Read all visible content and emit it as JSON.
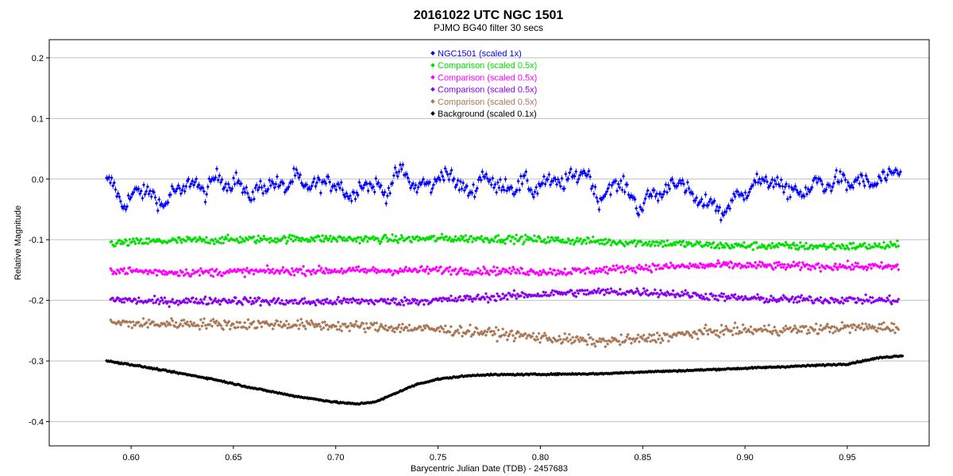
{
  "chart_data": {
    "type": "scatter",
    "title": "20161022 UTC   NGC 1501",
    "subtitle": "PJMO    BG40 filter    30 secs",
    "xlabel": "Barycentric Julian Date (TDB) - 2457683",
    "ylabel": "Relative Magnitude",
    "xlim": [
      0.56,
      0.99
    ],
    "ylim": [
      -0.44,
      0.23
    ],
    "x_ticks": [
      0.6,
      0.65,
      0.7,
      0.75,
      0.8,
      0.85,
      0.9,
      0.95
    ],
    "x_tick_labels": [
      "0.60",
      "0.65",
      "0.70",
      "0.75",
      "0.80",
      "0.85",
      "0.90",
      "0.95"
    ],
    "y_ticks": [
      0.2,
      0.1,
      0.0,
      -0.1,
      -0.2,
      -0.3,
      -0.4
    ],
    "y_tick_labels": [
      "0.2",
      "0.1",
      "0.0",
      "-0.1",
      "-0.2",
      "-0.3",
      "-0.4"
    ],
    "grid": "horizontal",
    "legend_position": "top-center",
    "series": [
      {
        "name": "NGC1501 (scaled 1x)",
        "color": "#0000ff",
        "error_bars": true,
        "x": [
          0.588,
          0.592,
          0.596,
          0.6,
          0.604,
          0.608,
          0.612,
          0.616,
          0.62,
          0.624,
          0.628,
          0.632,
          0.636,
          0.64,
          0.644,
          0.648,
          0.652,
          0.656,
          0.66,
          0.664,
          0.668,
          0.672,
          0.676,
          0.68,
          0.684,
          0.688,
          0.692,
          0.696,
          0.7,
          0.704,
          0.708,
          0.712,
          0.716,
          0.72,
          0.724,
          0.728,
          0.732,
          0.736,
          0.74,
          0.744,
          0.748,
          0.752,
          0.756,
          0.76,
          0.764,
          0.768,
          0.772,
          0.776,
          0.78,
          0.784,
          0.788,
          0.792,
          0.796,
          0.8,
          0.804,
          0.808,
          0.812,
          0.816,
          0.82,
          0.824,
          0.828,
          0.832,
          0.836,
          0.84,
          0.844,
          0.848,
          0.852,
          0.856,
          0.86,
          0.864,
          0.868,
          0.872,
          0.876,
          0.88,
          0.884,
          0.888,
          0.892,
          0.896,
          0.9,
          0.904,
          0.908,
          0.912,
          0.916,
          0.92,
          0.924,
          0.928,
          0.932,
          0.936,
          0.94,
          0.944,
          0.948,
          0.952,
          0.956,
          0.96,
          0.964,
          0.968,
          0.972,
          0.976
        ],
        "y": [
          -0.005,
          -0.015,
          -0.04,
          -0.035,
          -0.015,
          -0.02,
          -0.035,
          -0.04,
          -0.025,
          -0.02,
          -0.005,
          -0.01,
          -0.02,
          -0.005,
          0.005,
          -0.01,
          -0.005,
          -0.02,
          -0.03,
          -0.01,
          -0.005,
          -0.015,
          -0.01,
          0.005,
          -0.015,
          -0.005,
          -0.015,
          0.0,
          -0.01,
          -0.02,
          -0.025,
          -0.015,
          -0.005,
          -0.01,
          -0.03,
          0.005,
          0.01,
          0.0,
          -0.015,
          -0.01,
          -0.005,
          0.005,
          0.01,
          -0.01,
          -0.025,
          -0.01,
          0.005,
          -0.005,
          -0.01,
          -0.015,
          -0.01,
          -0.005,
          -0.02,
          -0.005,
          -0.01,
          0.0,
          -0.01,
          0.005,
          0.015,
          0.0,
          -0.03,
          -0.025,
          -0.01,
          -0.005,
          -0.03,
          -0.045,
          -0.035,
          -0.025,
          -0.02,
          -0.01,
          0.0,
          -0.02,
          -0.04,
          -0.035,
          -0.04,
          -0.055,
          -0.045,
          -0.03,
          -0.02,
          -0.01,
          0.0,
          -0.005,
          -0.01,
          -0.015,
          -0.02,
          -0.025,
          -0.015,
          -0.005,
          -0.01,
          -0.005,
          0.0,
          -0.01,
          -0.005,
          0.0,
          -0.015,
          0.005,
          0.01,
          0.005
        ]
      },
      {
        "name": "Comparison  (scaled 0.5x)",
        "color": "#00e000",
        "x": [
          0.59,
          0.61,
          0.63,
          0.65,
          0.67,
          0.69,
          0.71,
          0.73,
          0.75,
          0.77,
          0.79,
          0.81,
          0.83,
          0.85,
          0.87,
          0.89,
          0.91,
          0.93,
          0.95,
          0.975
        ],
        "y": [
          -0.106,
          -0.103,
          -0.101,
          -0.1,
          -0.099,
          -0.098,
          -0.099,
          -0.099,
          -0.098,
          -0.098,
          -0.099,
          -0.101,
          -0.103,
          -0.105,
          -0.107,
          -0.11,
          -0.11,
          -0.111,
          -0.111,
          -0.11
        ]
      },
      {
        "name": "Comparison  (scaled 0.5x)",
        "color": "#ff00ff",
        "x": [
          0.59,
          0.61,
          0.63,
          0.65,
          0.67,
          0.69,
          0.71,
          0.73,
          0.75,
          0.77,
          0.79,
          0.81,
          0.83,
          0.85,
          0.87,
          0.89,
          0.91,
          0.93,
          0.95,
          0.975
        ],
        "y": [
          -0.15,
          -0.153,
          -0.154,
          -0.153,
          -0.152,
          -0.151,
          -0.151,
          -0.151,
          -0.15,
          -0.151,
          -0.152,
          -0.153,
          -0.15,
          -0.146,
          -0.144,
          -0.142,
          -0.143,
          -0.144,
          -0.144,
          -0.145
        ]
      },
      {
        "name": "Comparison  (scaled 0.5x)",
        "color": "#8800ee",
        "x": [
          0.59,
          0.61,
          0.63,
          0.65,
          0.67,
          0.69,
          0.71,
          0.73,
          0.75,
          0.77,
          0.79,
          0.81,
          0.83,
          0.85,
          0.87,
          0.89,
          0.91,
          0.93,
          0.95,
          0.975
        ],
        "y": [
          -0.198,
          -0.202,
          -0.201,
          -0.2,
          -0.202,
          -0.203,
          -0.201,
          -0.202,
          -0.2,
          -0.196,
          -0.192,
          -0.188,
          -0.186,
          -0.186,
          -0.19,
          -0.195,
          -0.198,
          -0.199,
          -0.199,
          -0.2
        ]
      },
      {
        "name": "Comparison  (scaled 0.5x)",
        "color": "#aa7755",
        "x": [
          0.59,
          0.61,
          0.63,
          0.65,
          0.67,
          0.69,
          0.71,
          0.73,
          0.75,
          0.77,
          0.79,
          0.81,
          0.83,
          0.85,
          0.87,
          0.89,
          0.91,
          0.93,
          0.95,
          0.975
        ],
        "y": [
          -0.237,
          -0.239,
          -0.238,
          -0.24,
          -0.239,
          -0.241,
          -0.243,
          -0.245,
          -0.248,
          -0.252,
          -0.258,
          -0.264,
          -0.268,
          -0.264,
          -0.256,
          -0.25,
          -0.249,
          -0.248,
          -0.245,
          -0.244
        ]
      },
      {
        "name": "Background  (scaled 0.1x)",
        "color": "#000000",
        "x": [
          0.588,
          0.6,
          0.62,
          0.64,
          0.66,
          0.68,
          0.7,
          0.71,
          0.72,
          0.73,
          0.74,
          0.75,
          0.76,
          0.77,
          0.8,
          0.83,
          0.85,
          0.87,
          0.9,
          0.93,
          0.95,
          0.965,
          0.977
        ],
        "y": [
          -0.3,
          -0.306,
          -0.318,
          -0.33,
          -0.345,
          -0.358,
          -0.368,
          -0.371,
          -0.367,
          -0.352,
          -0.338,
          -0.33,
          -0.326,
          -0.323,
          -0.322,
          -0.321,
          -0.318,
          -0.316,
          -0.312,
          -0.308,
          -0.305,
          -0.295,
          -0.291
        ]
      }
    ]
  }
}
